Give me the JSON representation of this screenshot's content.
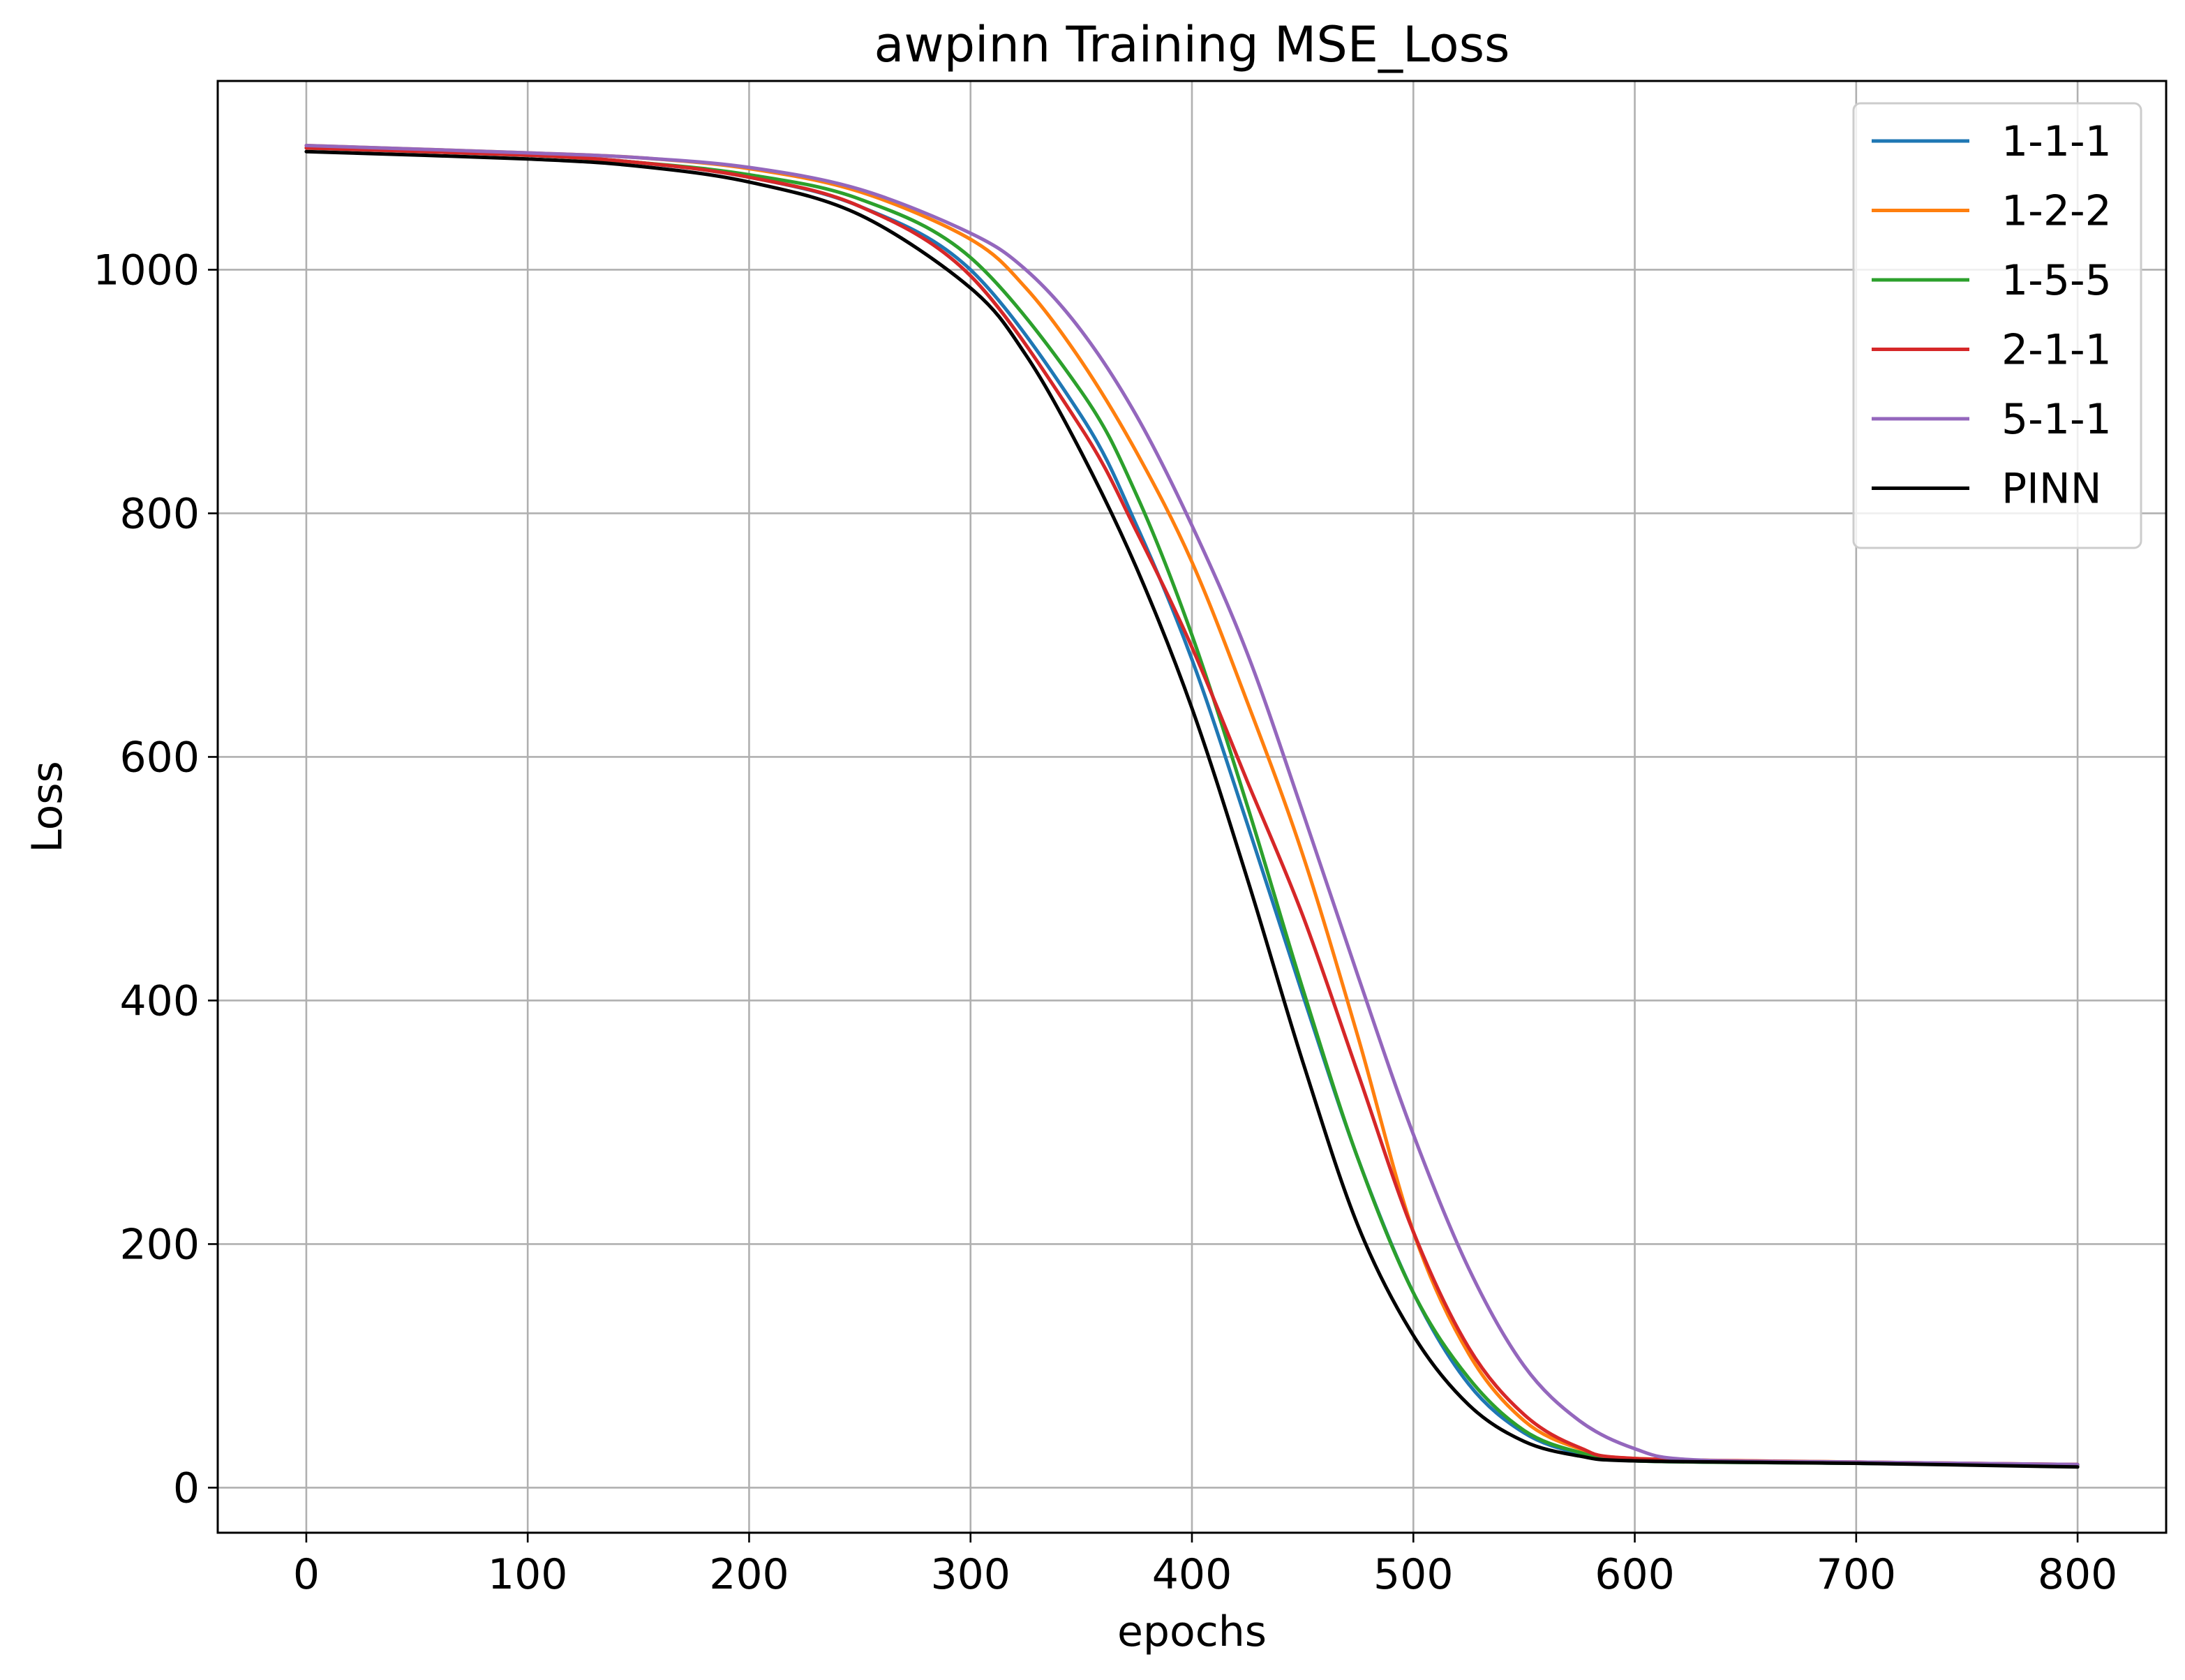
{
  "chart_data": {
    "type": "line",
    "title": "awpinn Training MSE_Loss",
    "xlabel": "epochs",
    "ylabel": "Loss",
    "xlim": [
      -40,
      840
    ],
    "ylim": [
      -37,
      1155
    ],
    "xticks": [
      0,
      100,
      200,
      300,
      400,
      500,
      600,
      700,
      800
    ],
    "yticks": [
      0,
      200,
      400,
      600,
      800,
      1000
    ],
    "grid": true,
    "legend_position": "top-right",
    "series": [
      {
        "name": "1-1-1",
        "color": "#1f77b4",
        "x": [
          0,
          100,
          150,
          200,
          250,
          300,
          350,
          375,
          400,
          425,
          450,
          475,
          500,
          525,
          550,
          575,
          600,
          700,
          800
        ],
        "y": [
          1100,
          1094,
          1088,
          1076,
          1052,
          1000,
          880,
          790,
          680,
          545,
          405,
          270,
          160,
          85,
          45,
          28,
          22,
          20,
          18
        ]
      },
      {
        "name": "1-2-2",
        "color": "#ff7f0e",
        "x": [
          0,
          100,
          150,
          200,
          250,
          300,
          325,
          350,
          375,
          400,
          425,
          450,
          475,
          500,
          525,
          550,
          575,
          600,
          700,
          800
        ],
        "y": [
          1102,
          1096,
          1092,
          1083,
          1064,
          1025,
          985,
          925,
          850,
          760,
          645,
          520,
          370,
          210,
          110,
          55,
          32,
          24,
          21,
          19
        ]
      },
      {
        "name": "1-5-5",
        "color": "#2ca02c",
        "x": [
          0,
          100,
          150,
          200,
          250,
          300,
          350,
          375,
          400,
          425,
          450,
          475,
          500,
          525,
          550,
          575,
          600,
          700,
          800
        ],
        "y": [
          1100,
          1094,
          1088,
          1078,
          1058,
          1010,
          900,
          815,
          700,
          560,
          410,
          270,
          160,
          90,
          47,
          29,
          22,
          20,
          18
        ]
      },
      {
        "name": "2-1-1",
        "color": "#d62728",
        "x": [
          0,
          100,
          150,
          200,
          250,
          300,
          350,
          375,
          400,
          425,
          450,
          475,
          500,
          525,
          550,
          575,
          600,
          700,
          800
        ],
        "y": [
          1100,
          1094,
          1088,
          1076,
          1052,
          995,
          870,
          785,
          690,
          580,
          470,
          340,
          210,
          115,
          60,
          33,
          24,
          21,
          19
        ]
      },
      {
        "name": "5-1-1",
        "color": "#9467bd",
        "x": [
          0,
          100,
          150,
          200,
          250,
          300,
          325,
          350,
          375,
          400,
          425,
          450,
          475,
          500,
          525,
          550,
          575,
          600,
          625,
          700,
          800
        ],
        "y": [
          1102,
          1096,
          1092,
          1084,
          1066,
          1030,
          1000,
          950,
          880,
          790,
          685,
          555,
          420,
          290,
          180,
          100,
          55,
          32,
          23,
          21,
          19
        ]
      },
      {
        "name": "PINN",
        "color": "#000000",
        "x": [
          0,
          100,
          150,
          200,
          250,
          300,
          325,
          350,
          375,
          400,
          425,
          450,
          475,
          500,
          525,
          550,
          575,
          600,
          700,
          800
        ],
        "y": [
          1097,
          1091,
          1085,
          1072,
          1045,
          985,
          930,
          850,
          755,
          640,
          500,
          350,
          215,
          125,
          68,
          38,
          26,
          22,
          20,
          17
        ]
      }
    ]
  }
}
